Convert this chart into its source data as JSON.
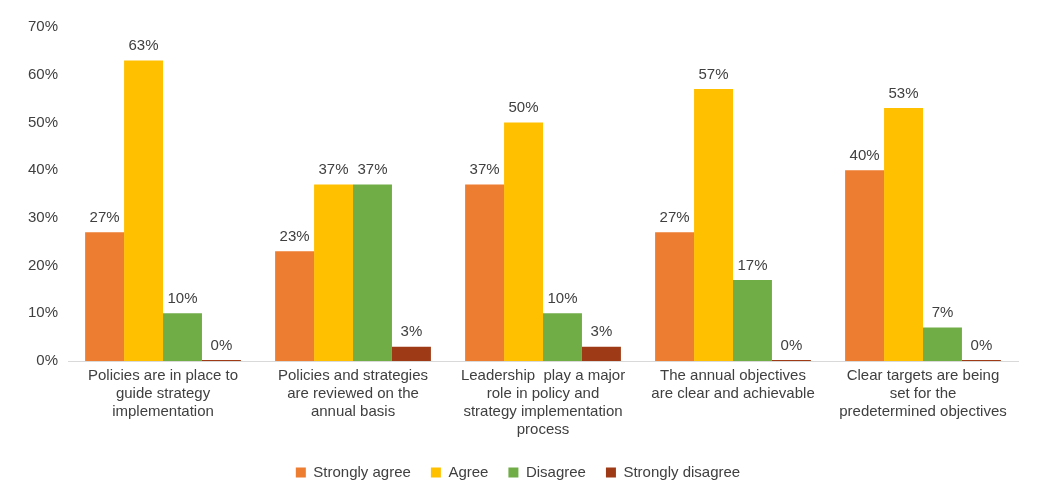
{
  "chart_data": {
    "type": "bar",
    "categories": [
      "Policies are in place to guide strategy implementation",
      "Policies and strategies are reviewed on the annual basis",
      "Leadership  play a major role in policy and strategy implementation process",
      "The annual objectives are clear and achievable",
      "Clear targets are being set for the predetermined objectives"
    ],
    "series": [
      {
        "name": "Strongly agree",
        "color": "#ed7d31",
        "values": [
          27,
          23,
          37,
          27,
          40
        ],
        "value_labels": [
          "27%",
          "23%",
          "37%",
          "27%",
          "40%"
        ]
      },
      {
        "name": "Agree",
        "color": "#ffc000",
        "values": [
          63,
          37,
          50,
          57,
          53
        ],
        "value_labels": [
          "63%",
          "37%",
          "50%",
          "57%",
          "53%"
        ]
      },
      {
        "name": "Disagree",
        "color": "#70ad47",
        "values": [
          10,
          37,
          10,
          17,
          7
        ],
        "value_labels": [
          "10%",
          "37%",
          "10%",
          "17%",
          "7%"
        ]
      },
      {
        "name": "Strongly disagree",
        "color": "#9e3b16",
        "values": [
          0,
          3,
          3,
          0,
          0
        ],
        "value_labels": [
          "0%",
          "3%",
          "3%",
          "0%",
          "0%"
        ]
      }
    ],
    "ylim": [
      0,
      70
    ],
    "yticks": [
      {
        "value": 0,
        "label": "0%"
      },
      {
        "value": 10,
        "label": "10%"
      },
      {
        "value": 20,
        "label": "20%"
      },
      {
        "value": 30,
        "label": "30%"
      },
      {
        "value": 40,
        "label": "40%"
      },
      {
        "value": 50,
        "label": "50%"
      },
      {
        "value": 60,
        "label": "60%"
      },
      {
        "value": 70,
        "label": "70%"
      }
    ],
    "grid": false,
    "legend": "bottom"
  }
}
